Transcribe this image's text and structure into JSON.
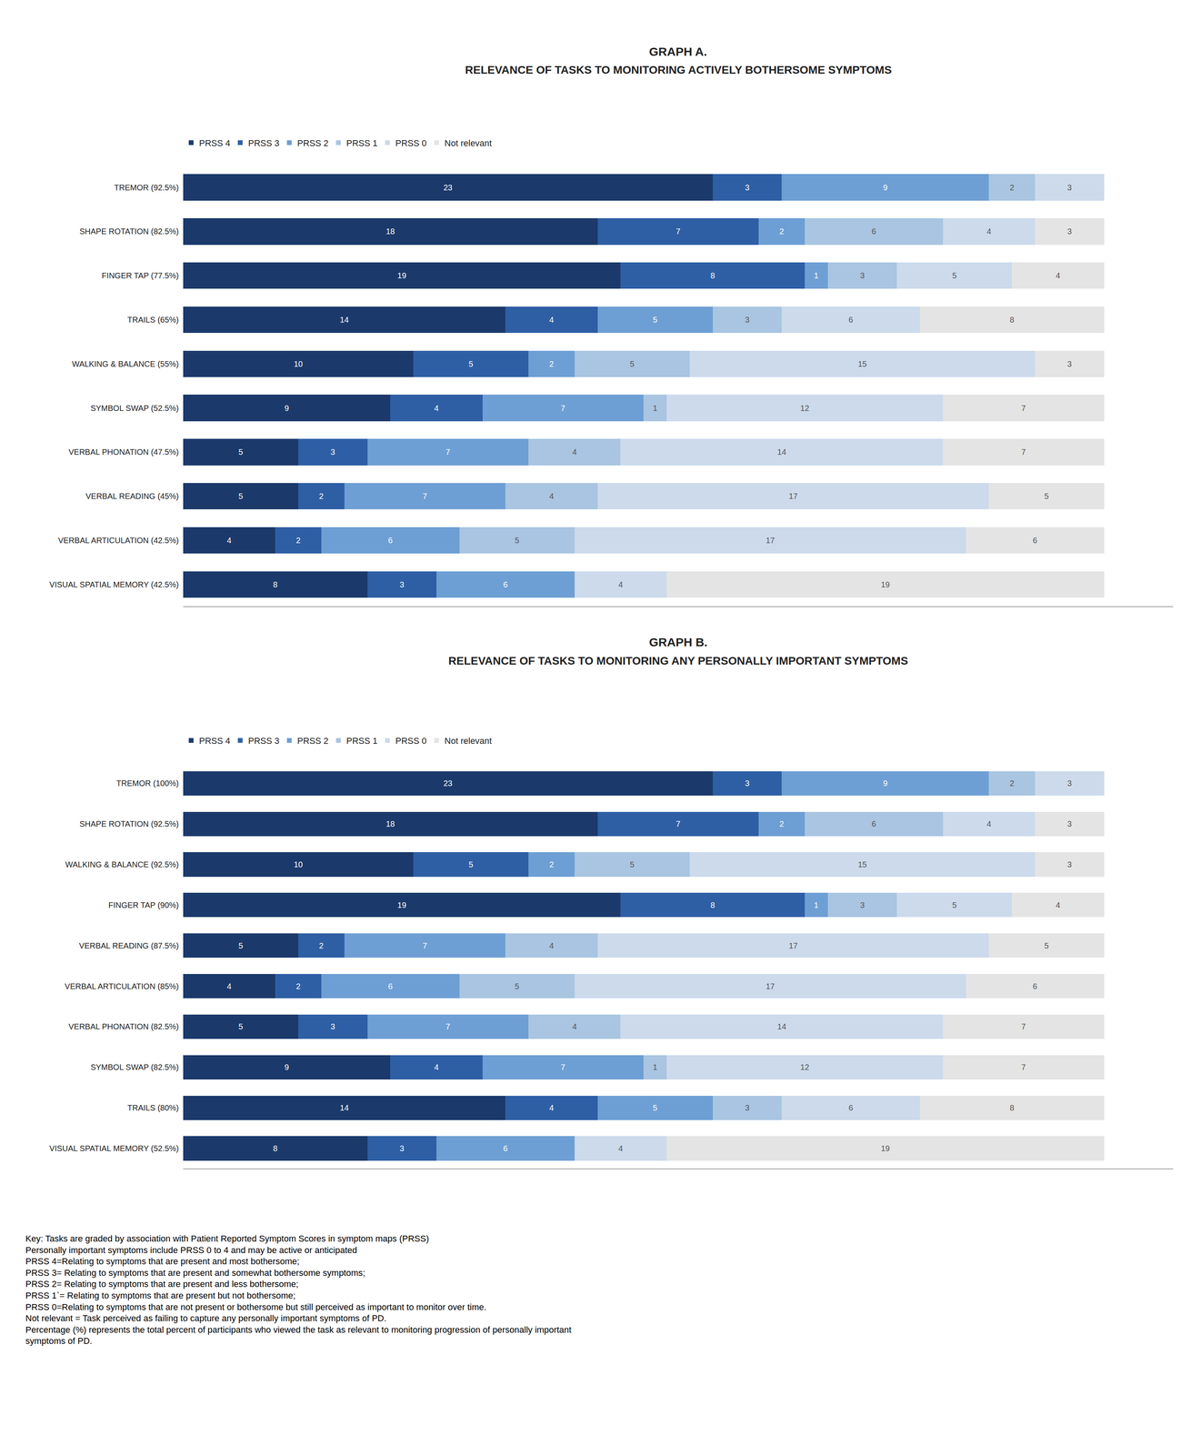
{
  "chart_data": [
    {
      "type": "bar",
      "orientation": "horizontal",
      "stacked": true,
      "data_labels": true,
      "tick_labels": "y",
      "grid": false,
      "legend": "top",
      "title": "GRAPH A.",
      "subtitle": "RELEVANCE OF TASKS TO MONITORING ACTIVELY BOTHERSOME SYMPTOMS",
      "categories": [
        "TREMOR (92.5%)",
        "SHAPE ROTATION (82.5%)",
        "FINGER TAP (77.5%)",
        "TRAILS (65%)",
        "WALKING & BALANCE (55%)",
        "SYMBOL SWAP (52.5%)",
        "VERBAL PHONATION (47.5%)",
        "VERBAL READING (45%)",
        "VERBAL ARTICULATION (42.5%)",
        "VISUAL SPATIAL MEMORY (42.5%)"
      ],
      "series": [
        {
          "name": "PRSS 4",
          "color": "#1b3a6b",
          "values": [
            23,
            18,
            19,
            14,
            10,
            9,
            5,
            5,
            4,
            8
          ]
        },
        {
          "name": "PRSS 3",
          "color": "#2e5fa5",
          "values": [
            3,
            7,
            8,
            4,
            5,
            4,
            3,
            2,
            2,
            3
          ]
        },
        {
          "name": "PRSS 2",
          "color": "#6e9fd4",
          "values": [
            9,
            2,
            1,
            5,
            2,
            7,
            7,
            7,
            6,
            6
          ]
        },
        {
          "name": "PRSS 1",
          "color": "#a9c5e1",
          "values": [
            2,
            6,
            3,
            3,
            5,
            1,
            4,
            4,
            5,
            0
          ]
        },
        {
          "name": "PRSS 0",
          "color": "#ccdaec",
          "values": [
            3,
            4,
            5,
            6,
            15,
            12,
            14,
            17,
            17,
            4
          ]
        },
        {
          "name": "Not relevant",
          "color": "#e4e4e4",
          "values": [
            0,
            3,
            4,
            8,
            3,
            7,
            7,
            5,
            6,
            19
          ]
        }
      ],
      "xlim": [
        0,
        43
      ]
    },
    {
      "type": "bar",
      "orientation": "horizontal",
      "stacked": true,
      "data_labels": true,
      "tick_labels": "y",
      "grid": false,
      "legend": "top",
      "title": "GRAPH B.",
      "subtitle": "RELEVANCE OF TASKS TO MONITORING ANY PERSONALLY IMPORTANT SYMPTOMS",
      "categories": [
        "TREMOR (100%)",
        "SHAPE ROTATION (92.5%)",
        "WALKING & BALANCE (92.5%)",
        "FINGER TAP (90%)",
        "VERBAL READING (87.5%)",
        "VERBAL ARTICULATION (85%)",
        "VERBAL PHONATION (82.5%)",
        "SYMBOL SWAP (82.5%)",
        "TRAILS (80%)",
        "VISUAL SPATIAL MEMORY (52.5%)"
      ],
      "series": [
        {
          "name": "PRSS 4",
          "color": "#1b3a6b",
          "values": [
            23,
            18,
            10,
            19,
            5,
            4,
            5,
            9,
            14,
            8
          ]
        },
        {
          "name": "PRSS 3",
          "color": "#2e5fa5",
          "values": [
            3,
            7,
            5,
            8,
            2,
            2,
            3,
            4,
            4,
            3
          ]
        },
        {
          "name": "PRSS 2",
          "color": "#6e9fd4",
          "values": [
            9,
            2,
            2,
            1,
            7,
            6,
            7,
            7,
            5,
            6
          ]
        },
        {
          "name": "PRSS 1",
          "color": "#a9c5e1",
          "values": [
            2,
            6,
            5,
            3,
            4,
            5,
            4,
            1,
            3,
            0
          ]
        },
        {
          "name": "PRSS 0",
          "color": "#ccdaec",
          "values": [
            3,
            4,
            15,
            5,
            17,
            17,
            14,
            12,
            6,
            4
          ]
        },
        {
          "name": "Not relevant",
          "color": "#e4e4e4",
          "values": [
            0,
            3,
            3,
            4,
            5,
            6,
            7,
            7,
            8,
            19
          ]
        }
      ],
      "xlim": [
        0,
        43
      ],
      "annotations": [
        "Key: Tasks are graded by association with Patient Reported Symptom Scores in symptom maps (PRSS)",
        "Personally important symptoms include PRSS 0 to 4 and may be active or anticipated",
        "PRSS 4=Relating to symptoms that are present and most bothersome;",
        "PRSS 3= Relating to symptoms that are present and somewhat bothersome symptoms;",
        "PRSS 2= Relating to symptoms that are present and less bothersome;",
        "PRSS 1`= Relating to symptoms that are present but not bothersome;",
        "PRSS 0=Relating to symptoms that are not present or bothersome but still perceived as important to monitor over time.",
        "Not relevant = Task perceived as failing to capture any personally important symptoms of PD.",
        "Percentage (%) represents the total percent of participants who viewed the task as relevant to monitoring progression of personally important",
        "symptoms of PD."
      ]
    }
  ]
}
